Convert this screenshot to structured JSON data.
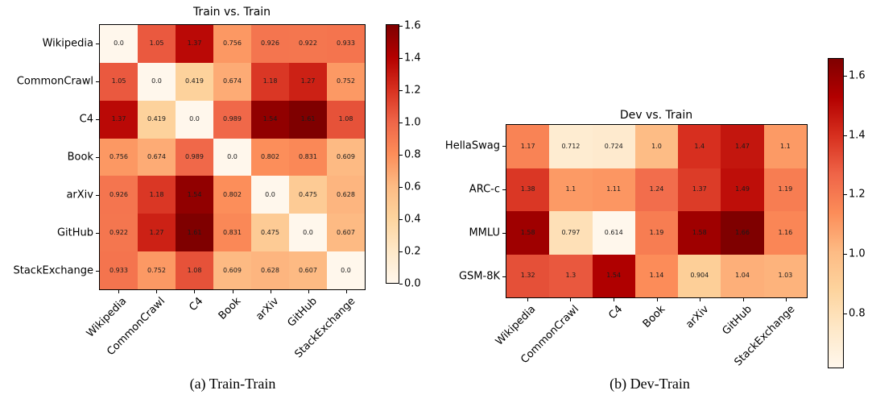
{
  "style": {
    "background": "#ffffff",
    "spine_color": "#000000",
    "annotation_color": "#1a1a1a",
    "colormap_stops": [
      "#fff7ec",
      "#fee8c8",
      "#fdd49e",
      "#fdbb84",
      "#fc8d59",
      "#ef6548",
      "#d7301f",
      "#b30000",
      "#7f0000"
    ]
  },
  "chart_data": [
    {
      "type": "heatmap",
      "title": "Train vs. Train",
      "caption": "(a) Train-Train",
      "colormap": "OrRd",
      "x_categories": [
        "Wikipedia",
        "CommonCrawl",
        "C4",
        "Book",
        "arXiv",
        "GitHub",
        "StackExchange"
      ],
      "y_categories": [
        "Wikipedia",
        "CommonCrawl",
        "C4",
        "Book",
        "arXiv",
        "GitHub",
        "StackExchange"
      ],
      "values": [
        [
          "0.0",
          "1.05",
          "1.37",
          "0.756",
          "0.926",
          "0.922",
          "0.933"
        ],
        [
          "1.05",
          "0.0",
          "0.419",
          "0.674",
          "1.18",
          "1.27",
          "0.752"
        ],
        [
          "1.37",
          "0.419",
          "0.0",
          "0.989",
          "1.54",
          "1.61",
          "1.08"
        ],
        [
          "0.756",
          "0.674",
          "0.989",
          "0.0",
          "0.802",
          "0.831",
          "0.609"
        ],
        [
          "0.926",
          "1.18",
          "1.54",
          "0.802",
          "0.0",
          "0.475",
          "0.628"
        ],
        [
          "0.922",
          "1.27",
          "1.61",
          "0.831",
          "0.475",
          "0.0",
          "0.607"
        ],
        [
          "0.933",
          "0.752",
          "1.08",
          "0.609",
          "0.628",
          "0.607",
          "0.0"
        ]
      ],
      "vmin": 0.0,
      "vmax": 1.61,
      "colorbar_ticks": [
        "0.0",
        "0.2",
        "0.4",
        "0.6",
        "0.8",
        "1.0",
        "1.2",
        "1.4",
        "1.6"
      ],
      "colorbar_position": "right",
      "grid": false
    },
    {
      "type": "heatmap",
      "title": "Dev vs. Train",
      "caption": "(b) Dev-Train",
      "colormap": "OrRd",
      "x_categories": [
        "Wikipedia",
        "CommonCrawl",
        "C4",
        "Book",
        "arXiv",
        "GitHub",
        "StackExchange"
      ],
      "y_categories": [
        "HellaSwag",
        "ARC-c",
        "MMLU",
        "GSM-8K"
      ],
      "values": [
        [
          "1.17",
          "0.712",
          "0.724",
          "1.0",
          "1.4",
          "1.47",
          "1.1"
        ],
        [
          "1.38",
          "1.1",
          "1.11",
          "1.24",
          "1.37",
          "1.49",
          "1.19"
        ],
        [
          "1.58",
          "0.797",
          "0.614",
          "1.19",
          "1.58",
          "1.66",
          "1.16"
        ],
        [
          "1.32",
          "1.3",
          "1.54",
          "1.14",
          "0.904",
          "1.04",
          "1.03"
        ]
      ],
      "vmin": 0.614,
      "vmax": 1.66,
      "colorbar_ticks": [
        "0.8",
        "1.0",
        "1.2",
        "1.4",
        "1.6"
      ],
      "colorbar_position": "right",
      "grid": false
    }
  ]
}
